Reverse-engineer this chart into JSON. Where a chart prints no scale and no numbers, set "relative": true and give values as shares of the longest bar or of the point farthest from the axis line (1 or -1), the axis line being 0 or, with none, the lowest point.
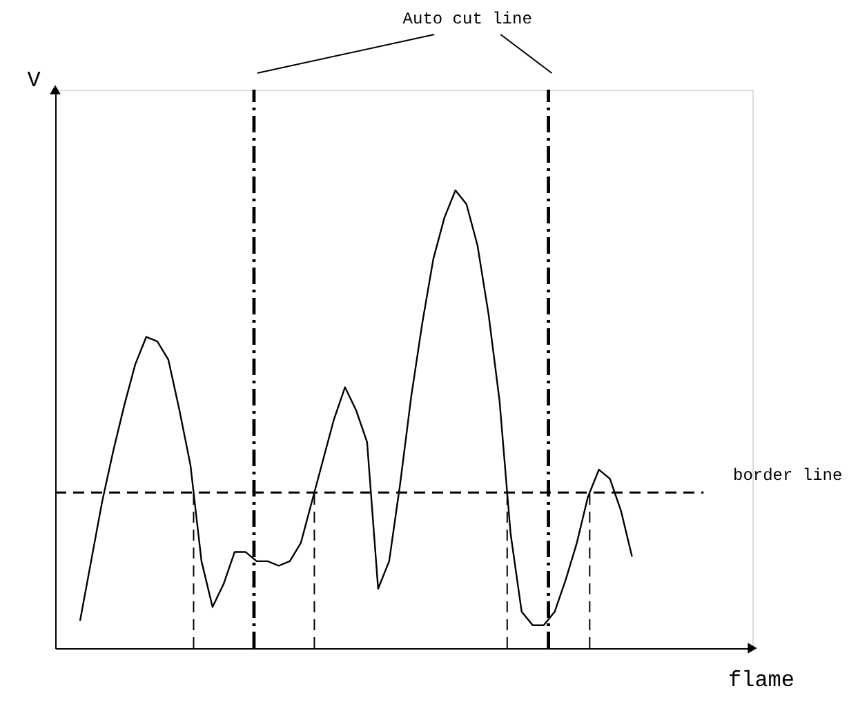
{
  "chart_data": {
    "type": "line",
    "relative": true,
    "xlabel": "flame",
    "ylabel": "V",
    "annotations": [
      "Auto cut line"
    ],
    "categories": [
      null,
      null,
      null,
      null,
      null,
      null,
      null,
      null,
      null,
      null,
      null,
      null,
      null,
      null,
      null,
      null,
      null,
      null,
      null,
      null,
      null,
      null,
      null,
      null,
      null,
      null,
      null,
      null,
      null,
      null,
      null,
      null,
      null,
      null,
      null,
      null,
      null,
      null,
      null,
      null,
      null,
      null,
      null,
      null,
      null,
      null,
      null,
      null,
      null,
      null,
      null
    ],
    "series": [
      {
        "color": "#000000",
        "values": [
          0.06,
          0.19,
          0.32,
          0.43,
          0.53,
          0.62,
          0.68,
          0.67,
          0.63,
          0.52,
          0.4,
          0.19,
          0.09,
          0.14,
          0.21,
          0.21,
          0.19,
          0.19,
          0.18,
          0.19,
          0.23,
          0.32,
          0.41,
          0.5,
          0.57,
          0.52,
          0.45,
          0.13,
          0.19,
          0.36,
          0.55,
          0.71,
          0.85,
          0.94,
          1,
          0.97,
          0.88,
          0.73,
          0.54,
          0.25,
          0.08,
          0.05,
          0.05,
          0.08,
          0.15,
          0.23,
          0.33,
          0.39,
          0.37,
          0.3,
          0.2
        ]
      }
    ],
    "tick_labels": false,
    "grid": false,
    "marker": "none",
    "line_style": "solid",
    "ref_lines": [
      {
        "axis": "y",
        "value": 0.34,
        "label": "border line",
        "line_style": "dashed",
        "color": "#000000"
      }
    ]
  }
}
